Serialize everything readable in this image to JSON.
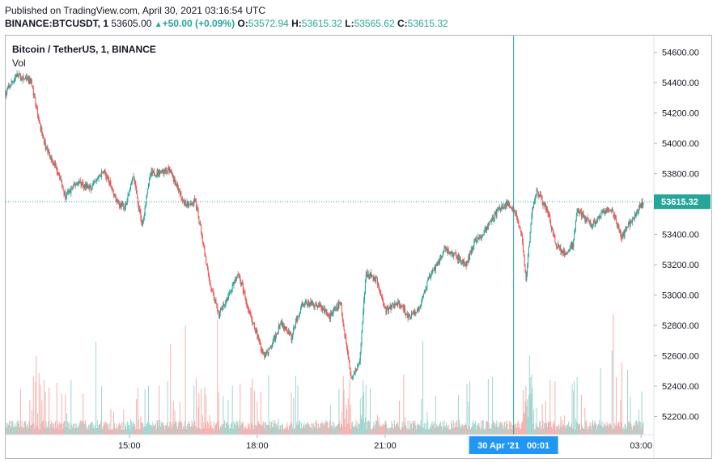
{
  "header": {
    "published": "Published on TradingView.com, April 30, 2021 03:16:54 UTC",
    "symbol": "BINANCE:BTCUSDT, 1",
    "last": "53605.00",
    "arrow": "▲",
    "change": "+50.00 (+0.09%)",
    "o_label": "O:",
    "o_value": "53572.94",
    "h_label": "H:",
    "h_value": "53615.32",
    "l_label": "L:",
    "l_value": "53565.62",
    "c_label": "C:",
    "c_value": "53615.32"
  },
  "legend": {
    "title": "Bitcoin / TetherUS, 1, BINANCE",
    "vol": "Vol"
  },
  "colors": {
    "up": "#26a69a",
    "down": "#ef5350",
    "up_vol": "#9fd6cf",
    "down_vol": "#f6b0ae",
    "price_line": "#26a69a",
    "crosshair": "#26a69a",
    "crosshair_label_bg": "#2196f3"
  },
  "chart_data": {
    "type": "candlestick",
    "y_ticks": [
      54600,
      54400,
      54200,
      54000,
      53800,
      53600,
      53400,
      53200,
      53000,
      52800,
      52600,
      52400,
      52200
    ],
    "y_tick_labels": [
      "54600.00",
      "54400.00",
      "54200.00",
      "54000.00",
      "53800.00",
      "53600.00",
      "53400.00",
      "53200.00",
      "53000.00",
      "52800.00",
      "52600.00",
      "52400.00",
      "52200.00"
    ],
    "ylim": [
      52080,
      54710
    ],
    "x_ticks": [
      "15:00",
      "18:00",
      "21:00",
      "03:00"
    ],
    "x_tick_hours": [
      15,
      18,
      21,
      27
    ],
    "xlim_hours": [
      12.1,
      27.3
    ],
    "crosshair": {
      "hour": 24.01,
      "label": "30 Apr '21   00:01"
    },
    "last_price": {
      "value": 53615.32,
      "label": "53615.32"
    },
    "price_path": [
      [
        12.1,
        54330
      ],
      [
        12.35,
        54450
      ],
      [
        12.7,
        54400
      ],
      [
        13.0,
        54000
      ],
      [
        13.35,
        53800
      ],
      [
        13.5,
        53650
      ],
      [
        13.8,
        53750
      ],
      [
        14.1,
        53700
      ],
      [
        14.4,
        53820
      ],
      [
        14.75,
        53600
      ],
      [
        14.9,
        53580
      ],
      [
        15.1,
        53780
      ],
      [
        15.3,
        53450
      ],
      [
        15.5,
        53800
      ],
      [
        15.95,
        53820
      ],
      [
        16.3,
        53600
      ],
      [
        16.55,
        53620
      ],
      [
        16.7,
        53400
      ],
      [
        16.85,
        53120
      ],
      [
        17.1,
        52870
      ],
      [
        17.35,
        53000
      ],
      [
        17.55,
        53150
      ],
      [
        17.8,
        52900
      ],
      [
        17.95,
        52770
      ],
      [
        18.15,
        52600
      ],
      [
        18.3,
        52640
      ],
      [
        18.55,
        52820
      ],
      [
        18.8,
        52720
      ],
      [
        19.05,
        52950
      ],
      [
        19.45,
        52930
      ],
      [
        19.7,
        52860
      ],
      [
        19.95,
        52950
      ],
      [
        20.05,
        52750
      ],
      [
        20.2,
        52460
      ],
      [
        20.4,
        52550
      ],
      [
        20.55,
        53150
      ],
      [
        20.8,
        53100
      ],
      [
        21.0,
        52900
      ],
      [
        21.3,
        52950
      ],
      [
        21.55,
        52860
      ],
      [
        21.8,
        52900
      ],
      [
        22.0,
        53100
      ],
      [
        22.4,
        53300
      ],
      [
        22.7,
        53250
      ],
      [
        22.9,
        53200
      ],
      [
        23.1,
        53350
      ],
      [
        23.3,
        53400
      ],
      [
        23.5,
        53500
      ],
      [
        23.7,
        53580
      ],
      [
        23.9,
        53600
      ],
      [
        24.05,
        53550
      ],
      [
        24.2,
        53380
      ],
      [
        24.3,
        53100
      ],
      [
        24.45,
        53560
      ],
      [
        24.55,
        53700
      ],
      [
        24.8,
        53550
      ],
      [
        25.0,
        53330
      ],
      [
        25.2,
        53280
      ],
      [
        25.4,
        53330
      ],
      [
        25.5,
        53560
      ],
      [
        25.85,
        53460
      ],
      [
        26.1,
        53550
      ],
      [
        26.3,
        53570
      ],
      [
        26.55,
        53380
      ],
      [
        26.75,
        53480
      ],
      [
        27.05,
        53615
      ]
    ]
  }
}
